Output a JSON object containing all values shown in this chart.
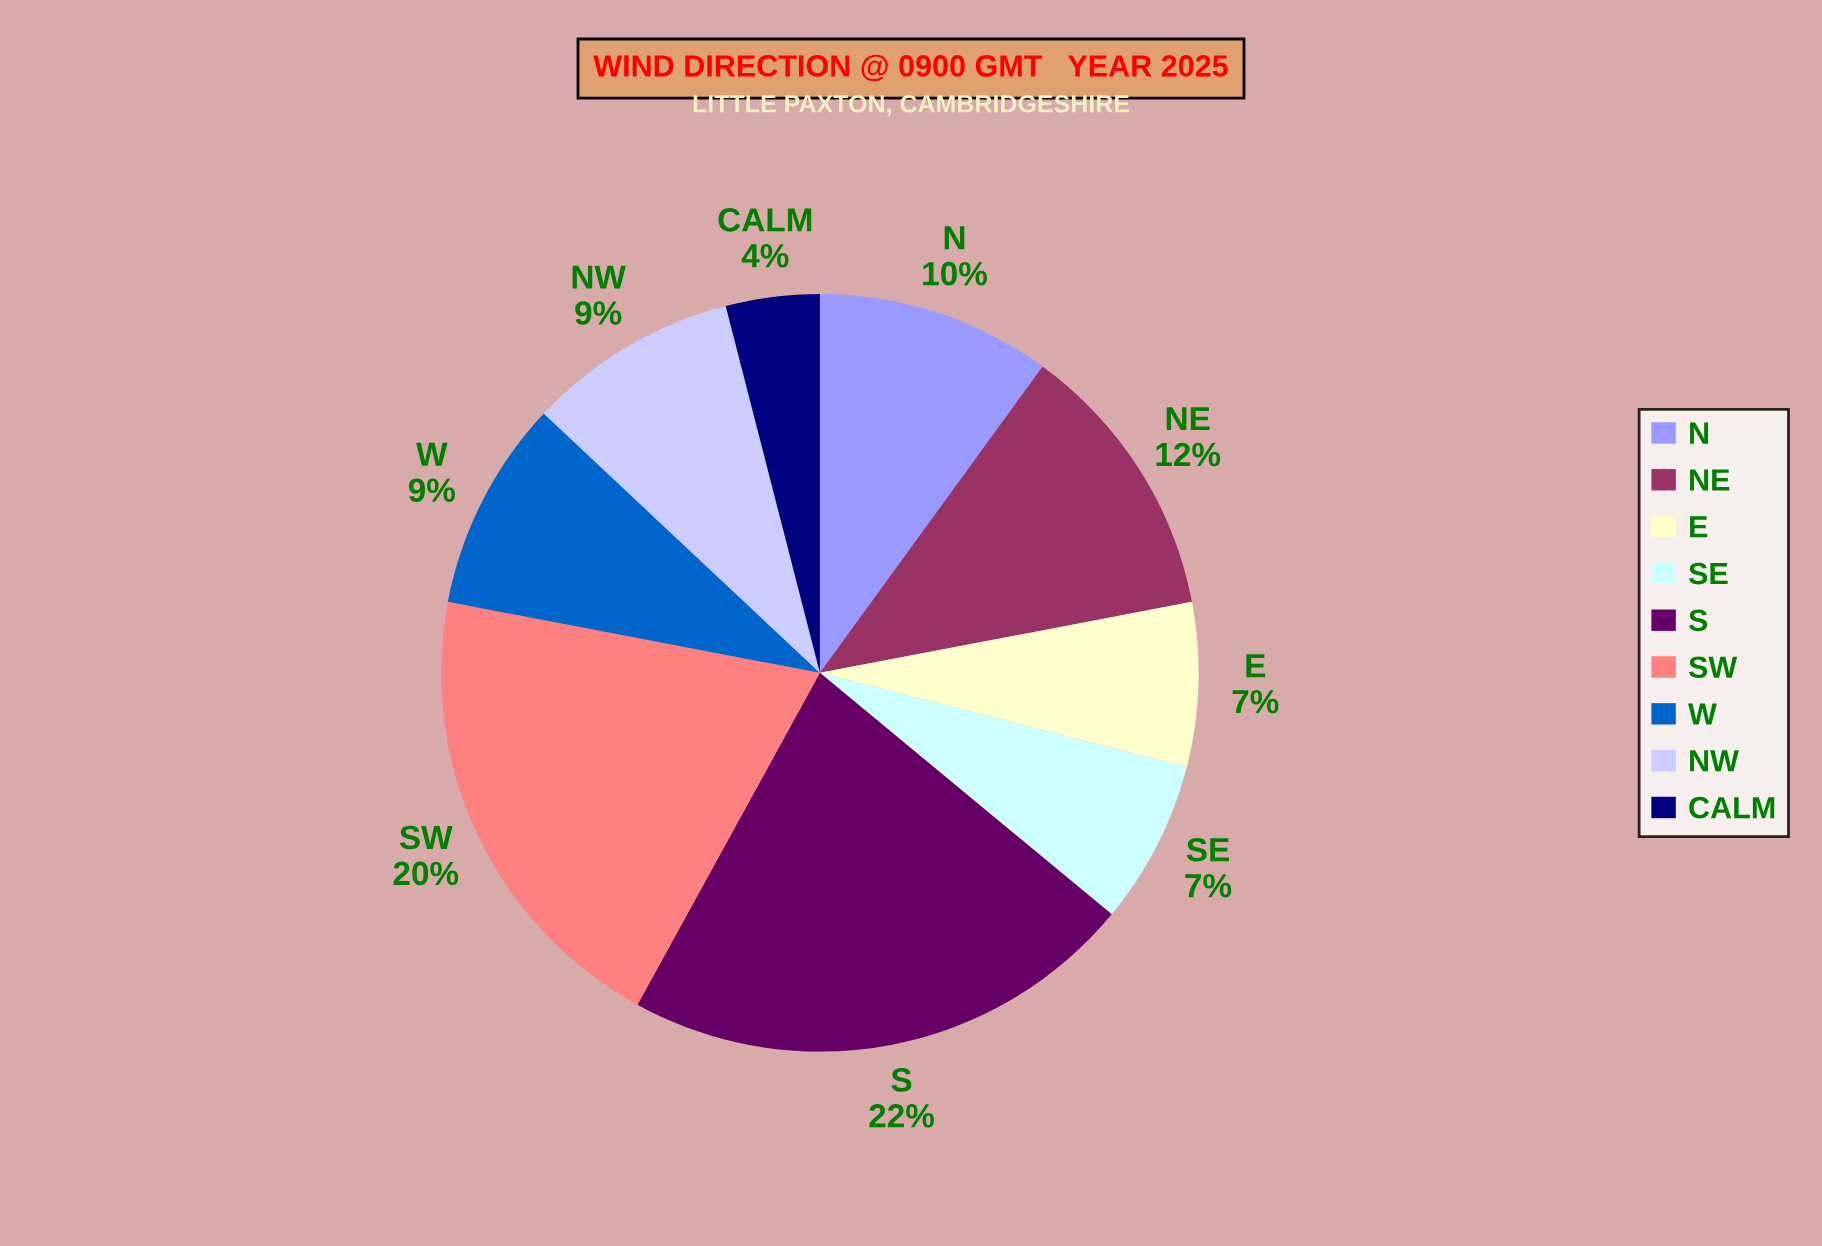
{
  "chart_data": {
    "type": "pie",
    "title": "WIND DIRECTION @ 0900 GMT   YEAR 2025",
    "subtitle": "LITTLE PAXTON, CAMBRIDGESHIRE",
    "categories": [
      "N",
      "NE",
      "E",
      "SE",
      "S",
      "SW",
      "W",
      "NW",
      "CALM"
    ],
    "values": [
      10,
      12,
      7,
      7,
      22,
      20,
      9,
      9,
      4
    ],
    "colors": [
      "#9999ff",
      "#993366",
      "#ffffcc",
      "#ccffff",
      "#660066",
      "#ff8080",
      "#0066cc",
      "#ccccff",
      "#000080"
    ],
    "value_labels": [
      "10%",
      "12%",
      "7%",
      "7%",
      "22%",
      "20%",
      "9%",
      "9%",
      "4%"
    ],
    "legend": "right"
  }
}
